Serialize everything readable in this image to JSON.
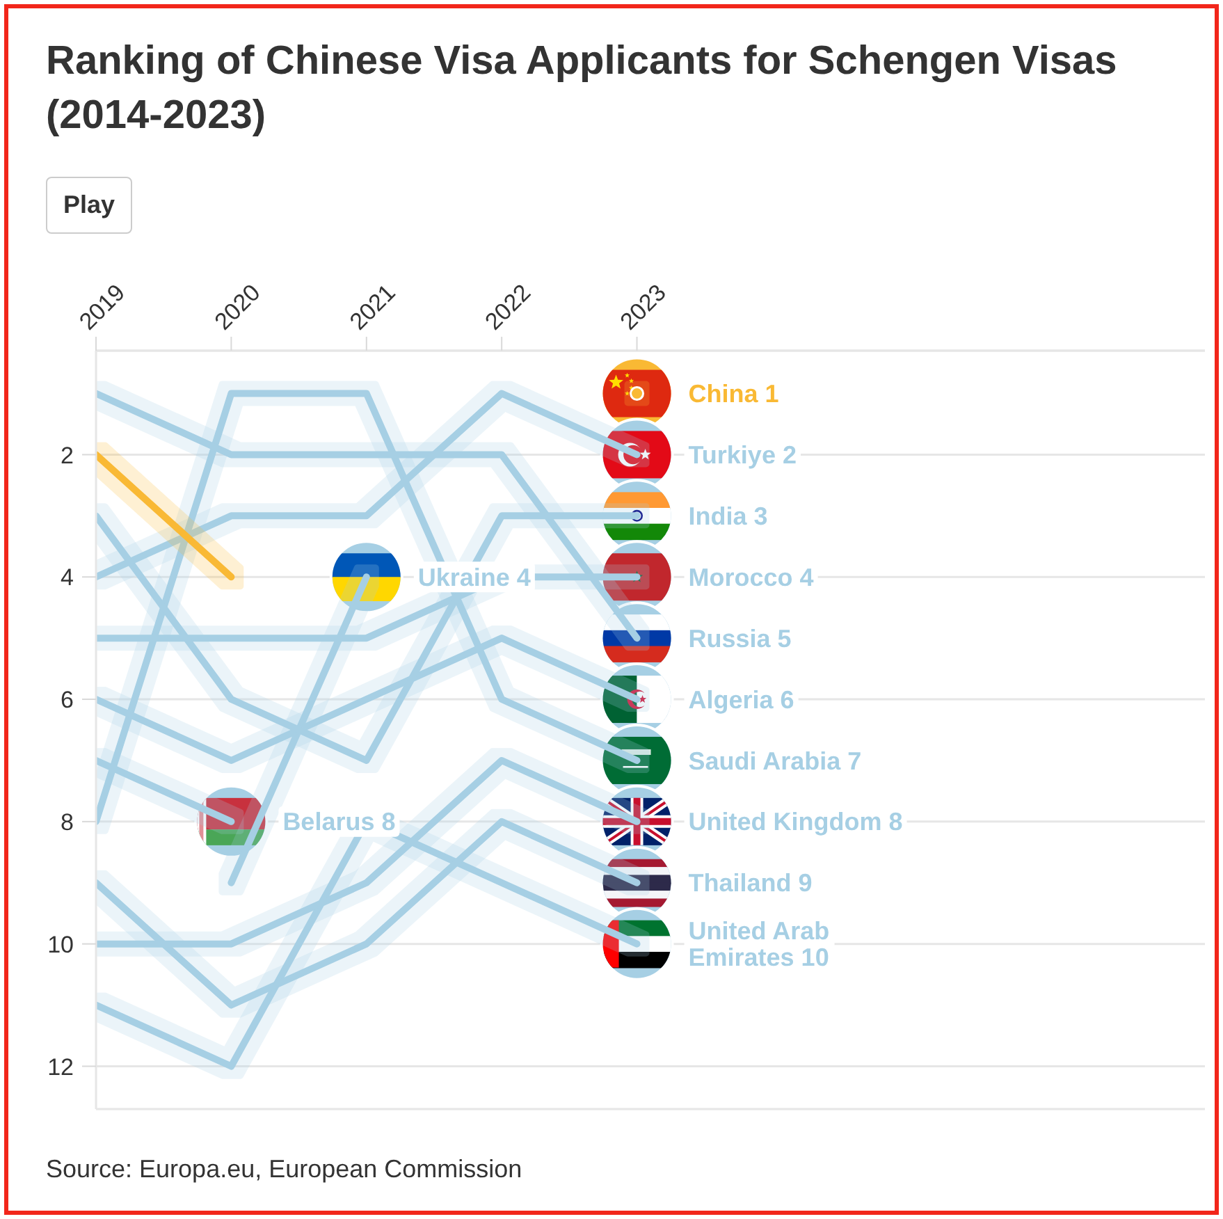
{
  "chart_data": {
    "type": "line",
    "title": "Ranking of Chinese Visa Applicants for Schengen Visas (2014-2023)",
    "annotations": [
      "Play",
      "Source: Europa.eu, European Commission"
    ],
    "x": [
      2019,
      2020,
      2021,
      2022,
      2023
    ],
    "xlim": [
      2019,
      2027.2
    ],
    "xticks": [
      2019,
      2020,
      2021,
      2022,
      2023
    ],
    "ylim": [
      12.7,
      0.3
    ],
    "yticks": [
      2,
      4,
      6,
      8,
      10,
      12
    ],
    "grid": "y",
    "line_style": "solid",
    "series": [
      {
        "name": "China",
        "color": "#f9b934",
        "values": [
          2,
          4,
          null,
          null,
          1
        ],
        "value_labels": [
          null,
          null,
          null,
          null,
          "1"
        ]
      },
      {
        "name": "Turkiye",
        "color": "#a6cfe4",
        "values": [
          4,
          3,
          3,
          1,
          2
        ],
        "value_labels": [
          null,
          null,
          null,
          null,
          "2"
        ]
      },
      {
        "name": "India",
        "color": "#a6cfe4",
        "values": [
          3,
          6,
          7,
          3,
          3
        ],
        "value_labels": [
          null,
          null,
          null,
          null,
          "3"
        ]
      },
      {
        "name": "Morocco",
        "color": "#a6cfe4",
        "values": [
          5,
          5,
          5,
          4,
          4
        ],
        "value_labels": [
          null,
          null,
          null,
          null,
          "4"
        ]
      },
      {
        "name": "Russia",
        "color": "#a6cfe4",
        "values": [
          1,
          2,
          2,
          2,
          5
        ],
        "value_labels": [
          null,
          null,
          null,
          null,
          "5"
        ]
      },
      {
        "name": "Algeria",
        "color": "#a6cfe4",
        "values": [
          6,
          7,
          6,
          5,
          6
        ],
        "value_labels": [
          null,
          null,
          null,
          null,
          "6"
        ]
      },
      {
        "name": "Saudi Arabia",
        "color": "#a6cfe4",
        "values": [
          8,
          1,
          1,
          6,
          7
        ],
        "value_labels": [
          null,
          null,
          null,
          null,
          "7"
        ]
      },
      {
        "name": "United Kingdom",
        "color": "#a6cfe4",
        "values": [
          10,
          10,
          9,
          7,
          8
        ],
        "value_labels": [
          null,
          null,
          null,
          null,
          "8"
        ]
      },
      {
        "name": "Thailand",
        "color": "#a6cfe4",
        "values": [
          9,
          11,
          10,
          8,
          9
        ],
        "value_labels": [
          null,
          null,
          null,
          null,
          "9"
        ]
      },
      {
        "name": "United Arab Emirates",
        "color": "#a6cfe4",
        "values": [
          11,
          12,
          8,
          9,
          10
        ],
        "value_labels": [
          null,
          null,
          null,
          null,
          "10"
        ]
      },
      {
        "name": "Ukraine",
        "color": "#a6cfe4",
        "values": [
          null,
          9,
          4,
          null,
          null
        ],
        "value_labels": [
          null,
          null,
          "4",
          null,
          null
        ]
      },
      {
        "name": "Belarus",
        "color": "#a6cfe4",
        "values": [
          7,
          8,
          null,
          null,
          null
        ],
        "value_labels": [
          null,
          "8",
          null,
          null,
          null
        ]
      }
    ]
  }
}
